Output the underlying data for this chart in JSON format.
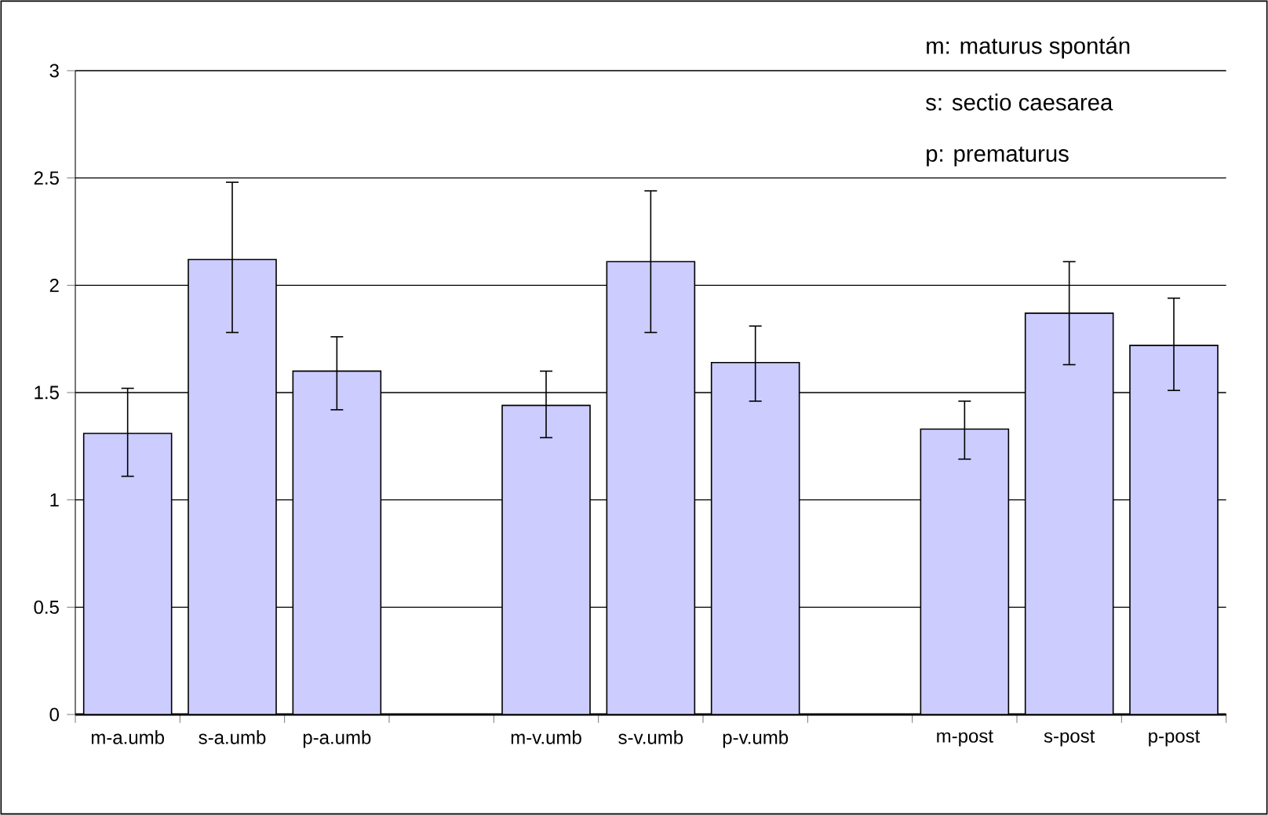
{
  "chart_data": {
    "type": "bar",
    "categories": [
      "m-a.umb",
      "s-a.umb",
      "p-a.umb",
      null,
      "m-v.umb",
      "s-v.umb",
      "p-v.umb",
      null,
      "m-post",
      "s-post",
      "p-post"
    ],
    "values": [
      1.31,
      2.12,
      1.6,
      null,
      1.44,
      2.11,
      1.64,
      null,
      1.33,
      1.87,
      1.72
    ],
    "errors": [
      [
        1.11,
        1.52
      ],
      [
        1.78,
        2.48
      ],
      [
        1.42,
        1.76
      ],
      null,
      [
        1.29,
        1.6
      ],
      [
        1.78,
        2.44
      ],
      [
        1.46,
        1.81
      ],
      null,
      [
        1.19,
        1.46
      ],
      [
        1.63,
        2.11
      ],
      [
        1.51,
        1.94
      ]
    ],
    "color": "#ccccff",
    "ylim": [
      0,
      3
    ],
    "yticks": [
      0,
      0.5,
      1,
      1.5,
      2,
      2.5,
      3
    ],
    "grid": "y",
    "annotations": [
      "m: maturus spontán",
      "s: sectio caesarea",
      "p: prematurus"
    ]
  }
}
